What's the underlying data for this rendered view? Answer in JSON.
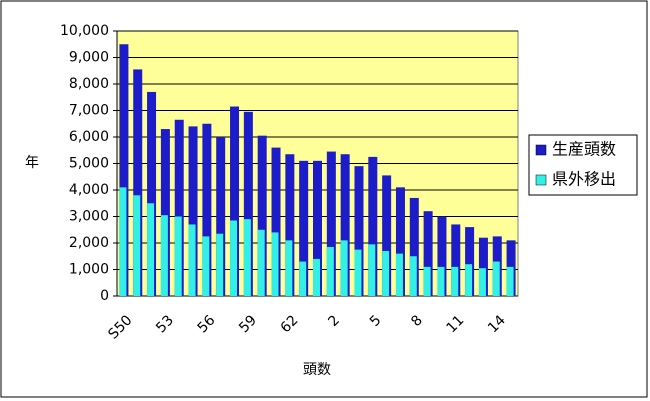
{
  "chart_data": {
    "type": "bar",
    "y_label": "年",
    "x_label": "頭数",
    "categories": [
      "S50",
      null,
      null,
      "53",
      null,
      null,
      "56",
      null,
      null,
      "59",
      null,
      null,
      "62",
      null,
      null,
      "2",
      null,
      null,
      "5",
      null,
      null,
      "8",
      null,
      null,
      "11",
      null,
      null,
      "14",
      null
    ],
    "series": [
      {
        "name": "生産頭数",
        "color": "#1c1cc8",
        "values": [
          9500,
          8550,
          7700,
          6300,
          6650,
          6400,
          6500,
          6000,
          7150,
          6950,
          6050,
          5600,
          5350,
          5100,
          5100,
          5450,
          5350,
          4900,
          5250,
          4550,
          4100,
          3700,
          3200,
          3000,
          2700,
          2600,
          2200,
          2250,
          2100
        ]
      },
      {
        "name": "県外移出",
        "color": "#33f0e6",
        "values": [
          4100,
          3800,
          3500,
          3050,
          3000,
          2700,
          2250,
          2350,
          2850,
          2900,
          2500,
          2400,
          2100,
          1300,
          1400,
          1850,
          2100,
          1750,
          1950,
          1700,
          1600,
          1500,
          1100,
          1100,
          1100,
          1200,
          1050,
          1300,
          1100
        ]
      }
    ],
    "ylim": [
      0,
      10000
    ],
    "yticks": [
      0,
      {
        "value": 1000,
        "label": "1,000"
      },
      {
        "value": 2000,
        "label": "2,000"
      },
      {
        "value": 3000,
        "label": "3,000"
      },
      {
        "value": 4000,
        "label": "4,000"
      },
      {
        "value": 5000,
        "label": "5,000"
      },
      {
        "value": 6000,
        "label": "6,000"
      },
      {
        "value": 7000,
        "label": "7,000"
      },
      {
        "value": 8000,
        "label": "8,000"
      },
      {
        "value": 9000,
        "label": "9,000"
      },
      {
        "value": 10000,
        "label": "10,000"
      }
    ],
    "grid": true,
    "legend": "right",
    "plot_background": "#ffff99"
  }
}
